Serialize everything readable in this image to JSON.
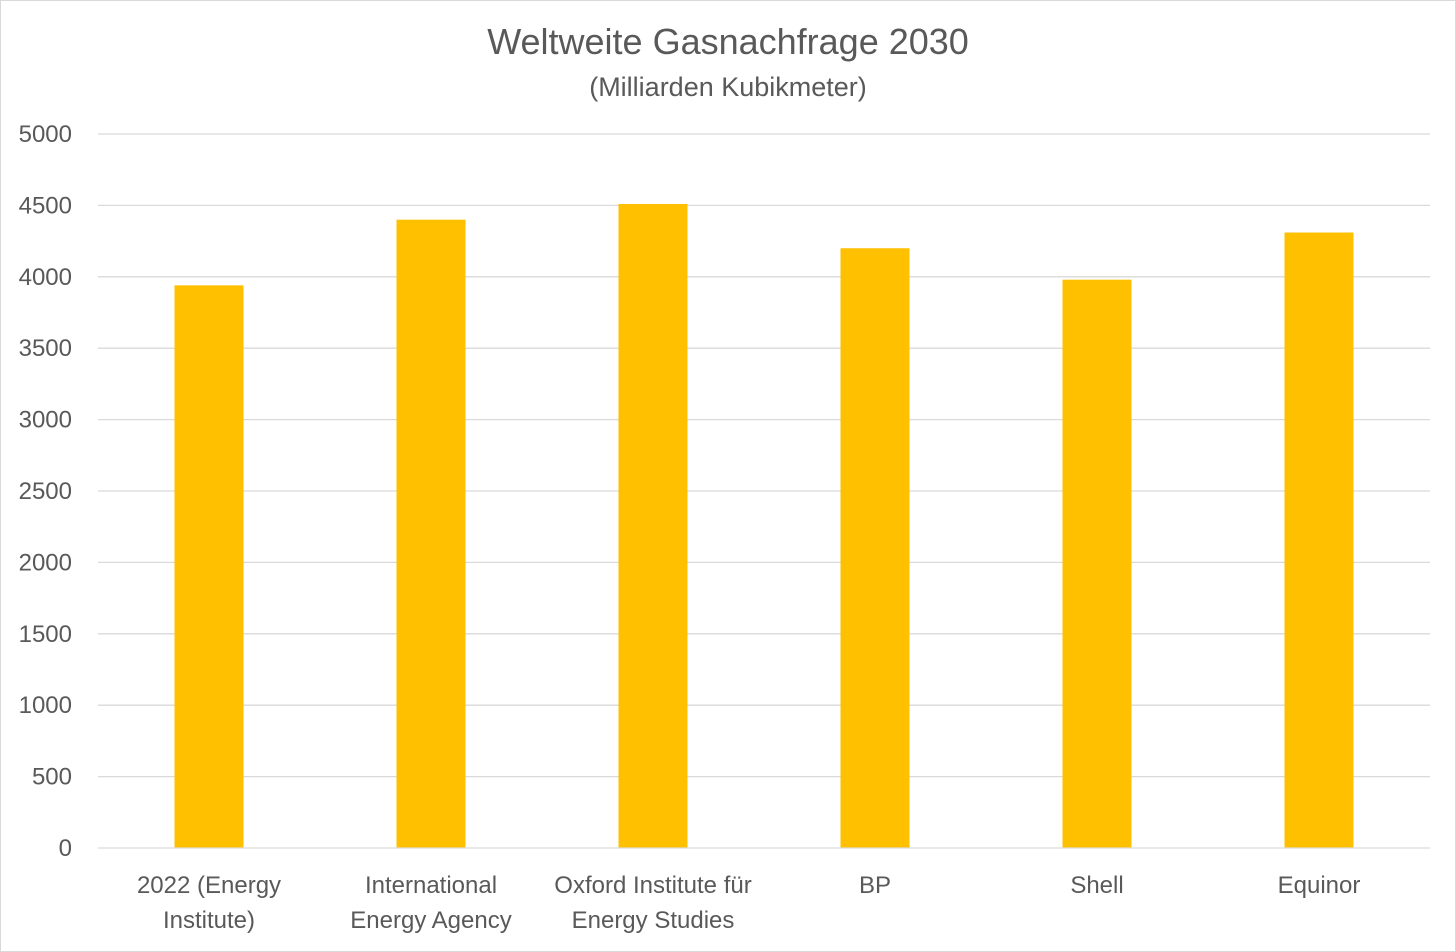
{
  "chart_data": {
    "type": "bar",
    "title": "Weltweite Gasnachfrage 2030",
    "subtitle": "(Milliarden Kubikmeter)",
    "categories": [
      [
        "2022 (Energy",
        "Institute)"
      ],
      [
        "International",
        "Energy Agency"
      ],
      [
        "Oxford Institute für",
        "Energy Studies"
      ],
      [
        "BP"
      ],
      [
        "Shell"
      ],
      [
        "Equinor"
      ]
    ],
    "values": [
      3940,
      4400,
      4510,
      4200,
      3980,
      4310
    ],
    "ylim": [
      0,
      5000
    ],
    "yticks": [
      0,
      500,
      1000,
      1500,
      2000,
      2500,
      3000,
      3500,
      4000,
      4500,
      5000
    ],
    "xlabel": "",
    "ylabel": "",
    "grid": true,
    "legend": "none",
    "colors": {
      "bar": "#FFC000",
      "text": "#595959",
      "grid": "#D9D9D9"
    }
  }
}
